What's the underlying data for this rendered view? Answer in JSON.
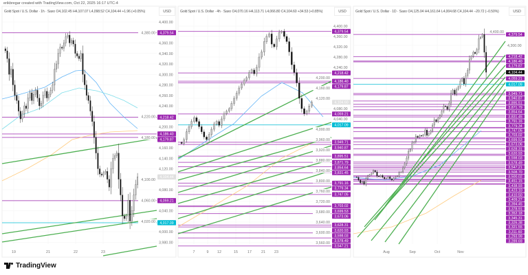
{
  "credit": "erikbregar created with TradingView.com, Oct 22, 2025 16:17 UTC-4",
  "brand": "TradingView",
  "colors": {
    "level": "#9c27b0",
    "support": "#00bcd4",
    "trend": "#4caf50",
    "ma_blue": "#64b5f6",
    "ma_cyan": "#80deea",
    "ma_orange": "#ffcc80",
    "up": "#c8c8c8",
    "down": "#111111"
  },
  "panels": [
    {
      "title": "Gold Spot / U.S. Dollar · 1h · Saxo",
      "open": "O4,102.45",
      "high": "H4,107.07",
      "low": "L4,098.52",
      "close": "C4,104.44",
      "change": "+1.96 (+0.05%)",
      "currency": "USD",
      "price_ticks": [
        "4,400.00",
        "4,380.00",
        "4,360.00",
        "4,340.00",
        "4,320.00",
        "4,300.00",
        "4,280.00",
        "4,260.00",
        "4,240.00",
        "4,220.00",
        "4,200.00",
        "4,180.00",
        "4,160.00",
        "4,140.00",
        "4,120.00",
        "4,100.00",
        "4,080.00",
        "4,060.00",
        "4,040.00",
        "4,020.00",
        "4,000.00",
        "3,980.00"
      ],
      "x_ticks": [
        "19",
        "21",
        "22",
        "23"
      ],
      "current": {
        "price": 4104.44,
        "label": "4,104.44",
        "style": "light"
      },
      "levels": [
        {
          "price": 4379.54,
          "label": "4,379.54",
          "kind": "level"
        },
        {
          "price": 4218.42,
          "label": "4,218.42",
          "kind": "level"
        },
        {
          "price": 4186.4,
          "label": "4,186.40",
          "kind": "level"
        },
        {
          "price": 4179.87,
          "label": "4,179.87",
          "kind": "level"
        },
        {
          "price": 4059.21,
          "label": "4,059.21",
          "kind": "level"
        },
        {
          "price": 4017.09,
          "label": "4,017.09",
          "kind": "support"
        }
      ],
      "closes": [
        4345,
        4330,
        4300,
        4310,
        4280,
        4260,
        4250,
        4230,
        4215,
        4225,
        4240,
        4235,
        4255,
        4265,
        4250,
        4262,
        4270,
        4255,
        4240,
        4245,
        4260,
        4268,
        4255,
        4262,
        4270,
        4280,
        4310,
        4320,
        4340,
        4352,
        4350,
        4360,
        4372,
        4375,
        4360,
        4365,
        4358,
        4340,
        4335,
        4330,
        4340,
        4300,
        4280,
        4260,
        4250,
        4230,
        4210,
        4180,
        4150,
        4120,
        4110,
        4108,
        4112,
        4115,
        4100,
        4085,
        4120,
        4140,
        4145,
        4150,
        4100,
        4070,
        4030,
        4025,
        4030,
        4060,
        4020,
        4040,
        4070,
        4090,
        4104.44
      ]
    },
    {
      "title": "Gold Spot / U.S. Dollar · 4h · Saxo",
      "open": "O4,070.16",
      "high": "H4,113.71",
      "low": "L4,066.80",
      "close": "C4,104.60",
      "change": "+34.53 (+0.85%)",
      "currency": "USD",
      "price_ticks": [
        "4,400.00",
        "4,360.00",
        "4,320.00",
        "4,280.00",
        "4,240.00",
        "4,200.00",
        "4,160.00",
        "4,120.00",
        "4,080.00",
        "4,040.00",
        "4,000.00",
        "3,960.00",
        "3,920.00",
        "3,880.00",
        "3,840.00",
        "3,800.00",
        "3,760.00",
        "3,720.00",
        "3,680.00",
        "3,640.00",
        "3,600.00",
        "3,560.00"
      ],
      "x_ticks": [
        "7",
        "9",
        "12",
        "15",
        "17",
        "21",
        "23"
      ],
      "current": {
        "price": 4104.6,
        "label": "4,104.60",
        "style": "light"
      },
      "levels": [
        {
          "price": 4379.54,
          "label": "4,379.54",
          "kind": "level"
        },
        {
          "price": 4218.42,
          "label": "4,218.42",
          "kind": "level"
        },
        {
          "price": 4186.4,
          "label": "4,186.40",
          "kind": "level"
        },
        {
          "price": 4179.87,
          "label": "4,179.87",
          "kind": "level"
        },
        {
          "price": 4059.21,
          "label": "4,059.21",
          "kind": "level"
        },
        {
          "price": 4017.09,
          "label": "4,017.09",
          "kind": "support"
        },
        {
          "price": 3949.71,
          "label": "3,949.71",
          "kind": "level"
        },
        {
          "price": 3940.87,
          "label": "3,940.87",
          "kind": "level"
        },
        {
          "price": 3895.51,
          "label": "3,895.51",
          "kind": "level"
        },
        {
          "price": 3871.79,
          "label": "3,871.79",
          "kind": "level"
        },
        {
          "price": 3854.64,
          "label": "3,854.64",
          "kind": "level"
        },
        {
          "price": 3831.45,
          "label": "3,831.45",
          "kind": "level"
        },
        {
          "price": 3791.16,
          "label": "3,791.16",
          "kind": "level"
        },
        {
          "price": 3779.34,
          "label": "3,779.34",
          "kind": "level"
        },
        {
          "price": 3747.05,
          "label": "3,747.05",
          "kind": "level"
        },
        {
          "price": 3703.02,
          "label": "3,703.02",
          "kind": "level"
        },
        {
          "price": 3699.53,
          "label": "3,699.53",
          "kind": "level"
        },
        {
          "price": 3673.06,
          "label": "3,673.06",
          "kind": "level"
        },
        {
          "price": 3628.31,
          "label": "3,628.31",
          "kind": "level"
        },
        {
          "price": 3620.93,
          "label": "3,620.93",
          "kind": "level"
        },
        {
          "price": 3598.03,
          "label": "3,598.03",
          "kind": "level"
        },
        {
          "price": 3578.49,
          "label": "3,578.49",
          "kind": "level"
        },
        {
          "price": 3547.21,
          "label": "3,547.21",
          "kind": "level"
        }
      ],
      "closes": [
        3945,
        3960,
        3990,
        4010,
        4030,
        4045,
        4030,
        4010,
        3990,
        3970,
        3960,
        3980,
        4000,
        4020,
        4030,
        4015,
        4040,
        4060,
        4070,
        4080,
        4100,
        4120,
        4140,
        4160,
        4175,
        4190,
        4200,
        4220,
        4230,
        4215,
        4240,
        4280,
        4300,
        4340,
        4360,
        4370,
        4330,
        4320,
        4350,
        4375,
        4380,
        4360,
        4340,
        4300,
        4250,
        4220,
        4180,
        4120,
        4080,
        4060,
        4070,
        4090,
        4104.6
      ]
    },
    {
      "title": "Gold Spot / U.S. Dollar · 1D · Saxo",
      "open": "O4,125.04",
      "high": "H4,161.64",
      "low": "L4,004.68",
      "close": "C4,104.44",
      "change": "−20.72 (−0.50%)",
      "currency": "USD",
      "price_ticks": [
        "4,400.00",
        "4,300.00"
      ],
      "x_ticks": [
        "Aug",
        "Sep",
        "Oct",
        "Nov"
      ],
      "current": {
        "price": 4104.44,
        "label": "4,104.44",
        "style": "dark"
      },
      "levels": [
        {
          "price": 4379.54,
          "label": "4,379.54",
          "kind": "level"
        },
        {
          "price": 4218.42,
          "label": "4,218.42",
          "kind": "level"
        },
        {
          "price": 4186.4,
          "label": "4,186.40",
          "kind": "level"
        },
        {
          "price": 4179.87,
          "label": "4,179.87",
          "kind": "level"
        },
        {
          "price": 4059.21,
          "label": "4,059.21",
          "kind": "level"
        },
        {
          "price": 4017.09,
          "label": "4,017.09",
          "kind": "support"
        },
        {
          "price": 3949.71,
          "label": "3,949.71",
          "kind": "level"
        },
        {
          "price": 3940.87,
          "label": "3,940.87",
          "kind": "level"
        },
        {
          "price": 3895.51,
          "label": "3,895.51",
          "kind": "level"
        },
        {
          "price": 3871.79,
          "label": "3,871.79",
          "kind": "level"
        },
        {
          "price": 3854.64,
          "label": "3,854.64",
          "kind": "level"
        },
        {
          "price": 3831.45,
          "label": "3,831.45",
          "kind": "level"
        },
        {
          "price": 3791.16,
          "label": "3,791.16",
          "kind": "level"
        },
        {
          "price": 3779.34,
          "label": "3,779.34",
          "kind": "level"
        },
        {
          "price": 3747.05,
          "label": "3,747.05",
          "kind": "level"
        },
        {
          "price": 3703.02,
          "label": "3,703.02",
          "kind": "level"
        },
        {
          "price": 3699.53,
          "label": "3,699.53",
          "kind": "level"
        },
        {
          "price": 3673.06,
          "label": "3,673.06",
          "kind": "level"
        },
        {
          "price": 3628.31,
          "label": "3,628.31",
          "kind": "level"
        },
        {
          "price": 3620.93,
          "label": "3,620.93",
          "kind": "level"
        },
        {
          "price": 3598.03,
          "label": "3,598.03",
          "kind": "level"
        },
        {
          "price": 3578.49,
          "label": "3,578.49",
          "kind": "level"
        },
        {
          "price": 3547.21,
          "label": "3,547.21",
          "kind": "level"
        },
        {
          "price": 3508.7,
          "label": "3,508.70",
          "kind": "level"
        },
        {
          "price": 3500.02,
          "label": "3,500.02",
          "kind": "level"
        },
        {
          "price": 3451.15,
          "label": "3,451.15",
          "kind": "level"
        },
        {
          "price": 3438.93,
          "label": "3,438.93",
          "kind": "level"
        },
        {
          "price": 3423.1,
          "label": "3,423.10",
          "kind": "level"
        },
        {
          "price": 3410.5,
          "label": "3,410.50",
          "kind": "level"
        },
        {
          "price": 3409.27,
          "label": "3,409.27",
          "kind": "level"
        },
        {
          "price": 3394.45,
          "label": "3,394.45",
          "kind": "level"
        },
        {
          "price": 3378.91,
          "label": "3,378.91",
          "kind": "level"
        },
        {
          "price": 3352.18,
          "label": "3,352.18",
          "kind": "level"
        },
        {
          "price": 3345.31,
          "label": "3,345.31",
          "kind": "level"
        },
        {
          "price": 3326.38,
          "label": "3,326.38",
          "kind": "level"
        },
        {
          "price": 3321.55,
          "label": "3,321.55",
          "kind": "level"
        },
        {
          "price": 3311.6,
          "label": "3,311.60",
          "kind": "level"
        },
        {
          "price": 3293.99,
          "label": "3,293.99",
          "kind": "level"
        },
        {
          "price": 3289.69,
          "label": "3,289.69",
          "kind": "level"
        }
      ],
      "closes": [
        3340,
        3320,
        3300,
        3310,
        3290,
        3330,
        3350,
        3360,
        3370,
        3390,
        3380,
        3350,
        3345,
        3355,
        3340,
        3330,
        3335,
        3345,
        3330,
        3320,
        3335,
        3345,
        3350,
        3375,
        3380,
        3410,
        3440,
        3480,
        3530,
        3545,
        3590,
        3600,
        3640,
        3630,
        3645,
        3640,
        3650,
        3685,
        3645,
        3660,
        3680,
        3720,
        3760,
        3745,
        3770,
        3790,
        3820,
        3860,
        3855,
        3835,
        3880,
        3950,
        3975,
        3945,
        3980,
        4000,
        4040,
        4060,
        4020,
        4080,
        4120,
        4200,
        4220,
        4250,
        4240,
        4270,
        4350,
        4360,
        4380,
        4250,
        4104.44
      ]
    }
  ]
}
